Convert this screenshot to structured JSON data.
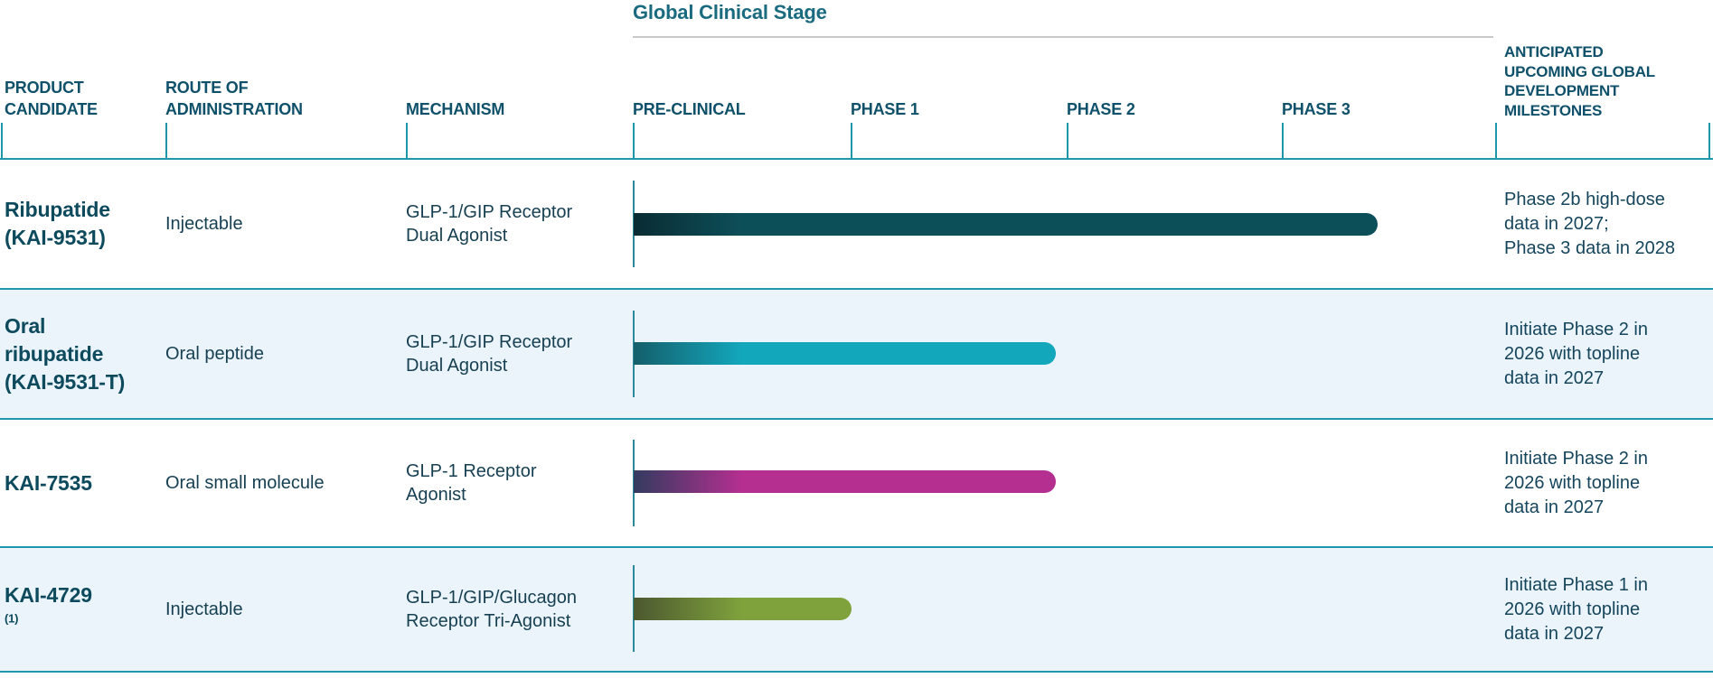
{
  "title": "Global Clinical Stage",
  "header": {
    "group_title": "Global Clinical Stage",
    "columns": [
      {
        "id": "product",
        "lines": [
          "PRODUCT",
          "CANDIDATE"
        ]
      },
      {
        "id": "route",
        "lines": [
          "ROUTE OF",
          "ADMINISTRATION"
        ]
      },
      {
        "id": "mechanism",
        "lines": [
          "MECHANISM"
        ]
      },
      {
        "id": "preclinical",
        "lines": [
          "PRE-CLINICAL"
        ]
      },
      {
        "id": "phase1",
        "lines": [
          "PHASE 1"
        ]
      },
      {
        "id": "phase2",
        "lines": [
          "PHASE 2"
        ]
      },
      {
        "id": "phase3",
        "lines": [
          "PHASE 3"
        ]
      },
      {
        "id": "milestones",
        "lines": [
          "ANTICIPATED",
          "UPCOMING GLOBAL",
          "DEVELOPMENT",
          "MILESTONES"
        ]
      }
    ]
  },
  "rows": [
    {
      "product_lines": [
        "Ribupatide",
        "(KAI-9531)"
      ],
      "product_sup": "",
      "route": "Injectable",
      "mechanism_lines": [
        "GLP-1/GIP Receptor",
        "Dual Agonist"
      ],
      "milestone_lines": [
        "Phase 2b high-dose",
        "data in 2027;",
        "Phase 3 data in 2028"
      ],
      "bar": {
        "progress_stage_units": 3.45,
        "color": "#0d4f59",
        "start_color": "#0a2c33"
      }
    },
    {
      "product_lines": [
        "Oral",
        "ribupatide",
        "(KAI-9531-T)"
      ],
      "product_sup": "",
      "route": "Oral peptide",
      "mechanism_lines": [
        "GLP-1/GIP Receptor",
        "Dual Agonist"
      ],
      "milestone_lines": [
        "Initiate Phase 2 in",
        "2026 with topline",
        "data in 2027"
      ],
      "bar": {
        "progress_stage_units": 1.96,
        "color": "#13a7bc",
        "start_color": "#145f6b"
      }
    },
    {
      "product_lines": [
        "KAI-7535"
      ],
      "product_sup": "",
      "route": "Oral small molecule",
      "mechanism_lines": [
        "GLP-1 Receptor",
        "Agonist"
      ],
      "milestone_lines": [
        "Initiate Phase 2 in",
        "2026 with topline",
        "data in 2027"
      ],
      "bar": {
        "progress_stage_units": 1.96,
        "color": "#b52f90",
        "start_color": "#333b60"
      }
    },
    {
      "product_lines": [
        "KAI-4729"
      ],
      "product_sup": "(1)",
      "route": "Injectable",
      "mechanism_lines": [
        "GLP-1/GIP/Glucagon",
        "Receptor Tri-Agonist"
      ],
      "milestone_lines": [
        "Initiate Phase 1 in",
        "2026 with topline",
        "data in 2027"
      ],
      "bar": {
        "progress_stage_units": 1.01,
        "color": "#7fa23c",
        "start_color": "#4c5830"
      }
    }
  ],
  "colors": {
    "divider_teal": "#1e97ab",
    "row_alt_background": "#eaf4fa",
    "header_text": "#0f506a",
    "group_title_text": "#1a6b80",
    "product_text": "#0d4a5e",
    "body_text": "#163f52",
    "underline_gray": "#c9c9c9"
  },
  "chart_data": {
    "type": "bar",
    "title": "Global Clinical Stage",
    "orientation": "horizontal",
    "categories": [
      "Ribupatide (KAI-9531)",
      "Oral ribupatide (KAI-9531-T)",
      "KAI-7535",
      "KAI-4729(1)"
    ],
    "values": [
      3.45,
      1.96,
      1.96,
      1.01
    ],
    "value_scale": "stage units: 0 = start of Pre-Clinical, 1 = start of Phase 1, 2 = start of Phase 2, 3 = start of Phase 3, 4 = end of Phase 3",
    "x_ticks": [
      "PRE-CLINICAL",
      "PHASE 1",
      "PHASE 2",
      "PHASE 3"
    ],
    "xlim": [
      0,
      4
    ],
    "grid": false,
    "legend": false,
    "series_colors": [
      "#0d4f59",
      "#13a7bc",
      "#b52f90",
      "#7fa23c"
    ],
    "annotations": [
      "Phase 2b high-dose data in 2027; Phase 3 data in 2028",
      "Initiate Phase 2 in 2026 with topline data in 2027",
      "Initiate Phase 2 in 2026 with topline data in 2027",
      "Initiate Phase 1 in 2026 with topline data in 2027"
    ]
  }
}
